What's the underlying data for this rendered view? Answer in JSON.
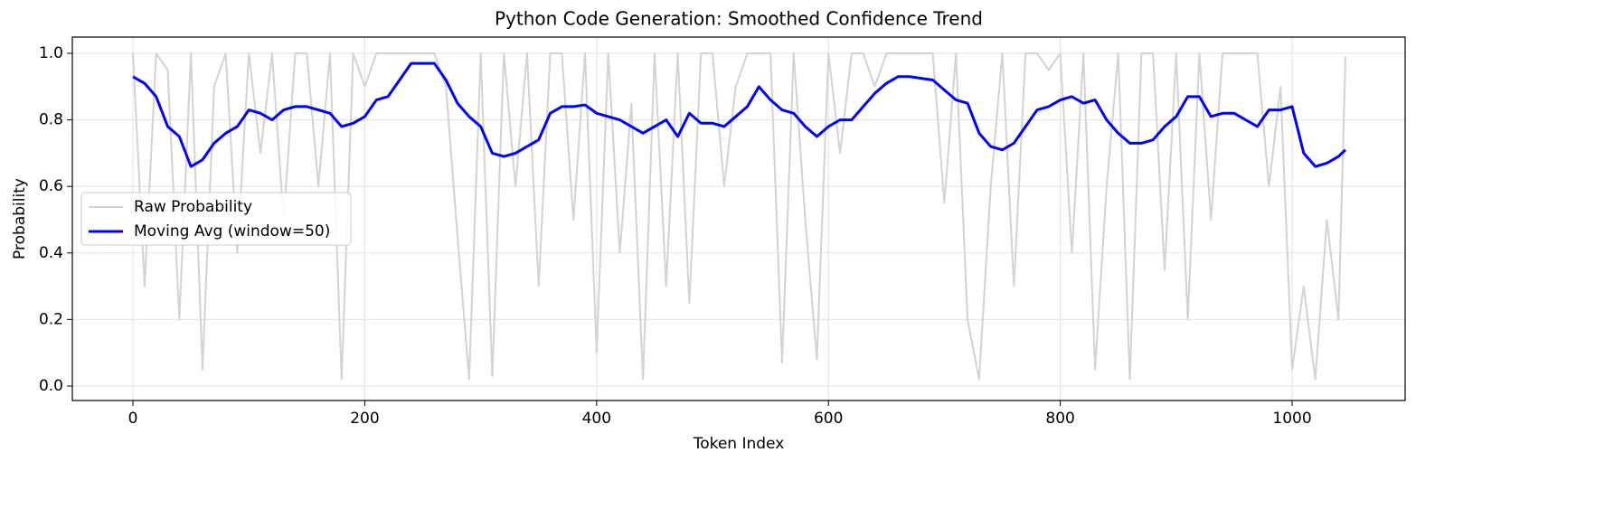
{
  "chart_data": {
    "type": "line",
    "title": "Python Code Generation: Smoothed Confidence Trend",
    "x_label": "Token Index",
    "y_label": "Probability",
    "x": [
      0,
      10,
      20,
      30,
      40,
      50,
      60,
      70,
      80,
      90,
      100,
      110,
      120,
      130,
      140,
      150,
      160,
      170,
      180,
      190,
      200,
      210,
      220,
      230,
      240,
      250,
      260,
      270,
      280,
      290,
      300,
      310,
      320,
      330,
      340,
      350,
      360,
      370,
      380,
      390,
      400,
      410,
      420,
      430,
      440,
      450,
      460,
      470,
      480,
      490,
      500,
      510,
      520,
      530,
      540,
      550,
      560,
      570,
      580,
      590,
      600,
      610,
      620,
      630,
      640,
      650,
      660,
      670,
      680,
      690,
      700,
      710,
      720,
      730,
      740,
      750,
      760,
      770,
      780,
      790,
      800,
      810,
      820,
      830,
      840,
      850,
      860,
      870,
      880,
      890,
      900,
      910,
      920,
      930,
      940,
      950,
      960,
      970,
      980,
      990,
      1000,
      1010,
      1020,
      1030,
      1040,
      1046
    ],
    "series": [
      {
        "name": "Raw Probability",
        "color": "#d3d3d3",
        "width": 2,
        "values": [
          1,
          0.3,
          1,
          0.95,
          0.2,
          1,
          0.05,
          0.9,
          1,
          0.4,
          1,
          0.7,
          1,
          0.5,
          1,
          1,
          0.6,
          1,
          0.02,
          1,
          0.9,
          1,
          1,
          1,
          1,
          1,
          1,
          0.9,
          0.45,
          0.02,
          1,
          0.03,
          1,
          0.6,
          1,
          0.3,
          1,
          1,
          0.5,
          1,
          0.1,
          1,
          0.4,
          0.85,
          0.02,
          1,
          0.3,
          1,
          0.25,
          1,
          1,
          0.6,
          0.9,
          1,
          1,
          1,
          0.07,
          1,
          0.5,
          0.08,
          1,
          0.7,
          1,
          1,
          0.9,
          1,
          1,
          1,
          1,
          1,
          0.55,
          1,
          0.2,
          0.02,
          0.6,
          1,
          0.3,
          1,
          1,
          0.95,
          1,
          0.4,
          1,
          0.05,
          0.6,
          1,
          0.02,
          1,
          1,
          0.35,
          1,
          0.2,
          1,
          0.5,
          1,
          1,
          1,
          1,
          0.6,
          0.9,
          0.05,
          0.3,
          0.02,
          0.5,
          0.2,
          0.99
        ]
      },
      {
        "name": "Moving Avg (window=50)",
        "color": "#0000ff",
        "width": 3,
        "values": [
          0.93,
          0.91,
          0.87,
          0.78,
          0.75,
          0.66,
          0.68,
          0.73,
          0.76,
          0.78,
          0.83,
          0.82,
          0.8,
          0.83,
          0.84,
          0.84,
          0.83,
          0.82,
          0.78,
          0.79,
          0.81,
          0.86,
          0.87,
          0.92,
          0.97,
          0.97,
          0.97,
          0.92,
          0.85,
          0.81,
          0.78,
          0.7,
          0.69,
          0.7,
          0.72,
          0.74,
          0.82,
          0.84,
          0.84,
          0.845,
          0.82,
          0.81,
          0.8,
          0.78,
          0.76,
          0.78,
          0.8,
          0.75,
          0.82,
          0.79,
          0.79,
          0.78,
          0.81,
          0.84,
          0.9,
          0.86,
          0.83,
          0.82,
          0.78,
          0.75,
          0.78,
          0.8,
          0.8,
          0.84,
          0.88,
          0.91,
          0.93,
          0.93,
          0.925,
          0.92,
          0.89,
          0.86,
          0.85,
          0.76,
          0.72,
          0.71,
          0.73,
          0.78,
          0.83,
          0.84,
          0.86,
          0.87,
          0.85,
          0.86,
          0.8,
          0.76,
          0.73,
          0.73,
          0.74,
          0.78,
          0.81,
          0.87,
          0.87,
          0.81,
          0.82,
          0.82,
          0.8,
          0.78,
          0.83,
          0.83,
          0.84,
          0.7,
          0.66,
          0.67,
          0.69,
          0.71
        ]
      }
    ],
    "xlim": [
      -52.3,
      1097.5
    ],
    "ylim": [
      -0.0435,
      1.049
    ],
    "xticks": [
      0,
      200,
      400,
      600,
      800,
      1000
    ],
    "yticks": [
      {
        "value": 0,
        "label": "0.0"
      },
      0.2,
      0.4,
      0.6,
      0.8,
      {
        "value": 1,
        "label": "1.0"
      }
    ],
    "grid": true,
    "legend": "center left"
  }
}
